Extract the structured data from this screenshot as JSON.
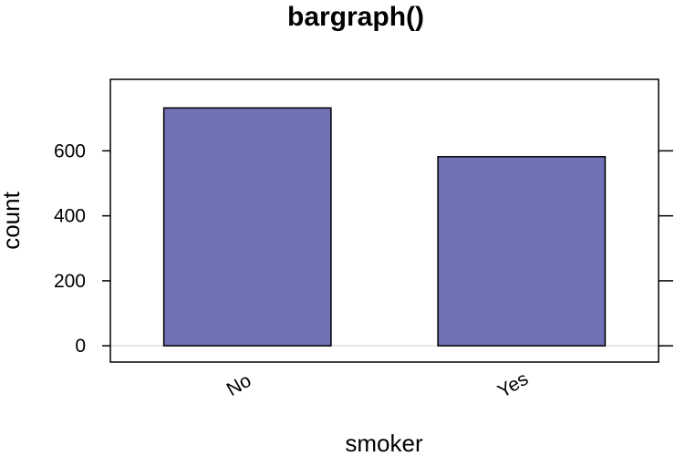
{
  "chart_data": {
    "type": "bar",
    "title": "bargraph()",
    "xlabel": "smoker",
    "ylabel": "count",
    "categories": [
      "No",
      "Yes"
    ],
    "values": [
      732,
      582
    ],
    "ylim": [
      -50,
      820
    ],
    "yticks": [
      0,
      200,
      400,
      600
    ],
    "ytick_labels": [
      "0",
      "200",
      "400",
      "600"
    ],
    "grid": false,
    "bar_color": "#7171b6",
    "bar_edge_color": "#000000",
    "zero_line_color": "#e6e6e6"
  }
}
